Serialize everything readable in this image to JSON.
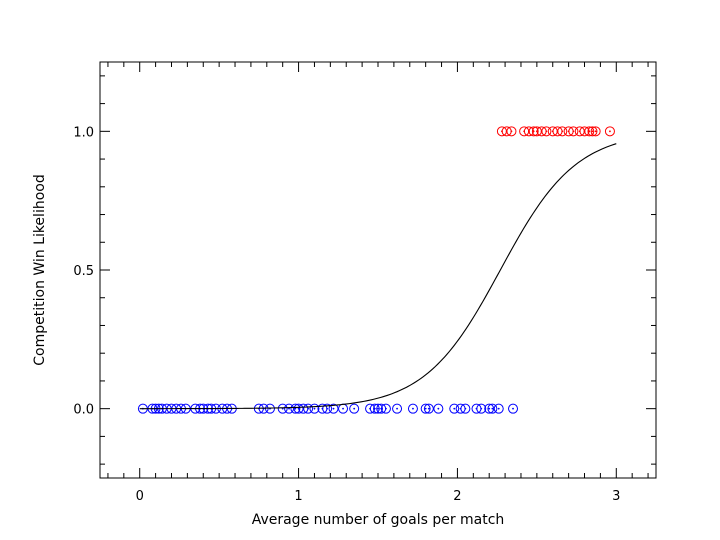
{
  "chart_data": {
    "type": "scatter",
    "title": "",
    "xlabel": "Average number of goals per match",
    "ylabel": "Competition Win Likelihood",
    "xlim": [
      -0.25,
      3.25
    ],
    "ylim": [
      -0.25,
      1.25
    ],
    "x_ticks": [
      0,
      1,
      2,
      3
    ],
    "x_tick_labels": [
      "0",
      "1",
      "2",
      "3"
    ],
    "y_ticks": [
      0.0,
      0.5,
      1.0
    ],
    "y_tick_labels": [
      "0.0",
      "0.5",
      "1.0"
    ],
    "grid": false,
    "legend": "none",
    "series": [
      {
        "kind": "scatter",
        "marker": "circle-dot",
        "color": "#0000ff",
        "x": [
          0.02,
          0.08,
          0.1,
          0.12,
          0.14,
          0.17,
          0.2,
          0.23,
          0.26,
          0.29,
          0.35,
          0.38,
          0.4,
          0.43,
          0.45,
          0.48,
          0.52,
          0.55,
          0.58,
          0.75,
          0.78,
          0.82,
          0.9,
          0.94,
          0.98,
          1.0,
          1.03,
          1.06,
          1.1,
          1.15,
          1.18,
          1.22,
          1.28,
          1.35,
          1.45,
          1.48,
          1.5,
          1.52,
          1.55,
          1.62,
          1.72,
          1.8,
          1.82,
          1.88,
          1.98,
          2.02,
          2.05,
          2.12,
          2.15,
          2.2,
          2.22,
          2.26,
          2.35
        ],
        "y": [
          0,
          0,
          0,
          0,
          0,
          0,
          0,
          0,
          0,
          0,
          0,
          0,
          0,
          0,
          0,
          0,
          0,
          0,
          0,
          0,
          0,
          0,
          0,
          0,
          0,
          0,
          0,
          0,
          0,
          0,
          0,
          0,
          0,
          0,
          0,
          0,
          0,
          0,
          0,
          0,
          0,
          0,
          0,
          0,
          0,
          0,
          0,
          0,
          0,
          0,
          0,
          0,
          0
        ]
      },
      {
        "kind": "scatter",
        "marker": "circle-dot",
        "color": "#ff0000",
        "x": [
          2.28,
          2.31,
          2.34,
          2.42,
          2.45,
          2.48,
          2.5,
          2.53,
          2.56,
          2.6,
          2.63,
          2.66,
          2.7,
          2.73,
          2.77,
          2.8,
          2.83,
          2.85,
          2.87,
          2.96
        ],
        "y": [
          1,
          1,
          1,
          1,
          1,
          1,
          1,
          1,
          1,
          1,
          1,
          1,
          1,
          1,
          1,
          1,
          1,
          1,
          1,
          1
        ]
      },
      {
        "kind": "line",
        "color": "#000000",
        "function": "logistic",
        "x_range": [
          0,
          3
        ],
        "midpoint": 2.27,
        "slope": 4.2
      }
    ]
  }
}
